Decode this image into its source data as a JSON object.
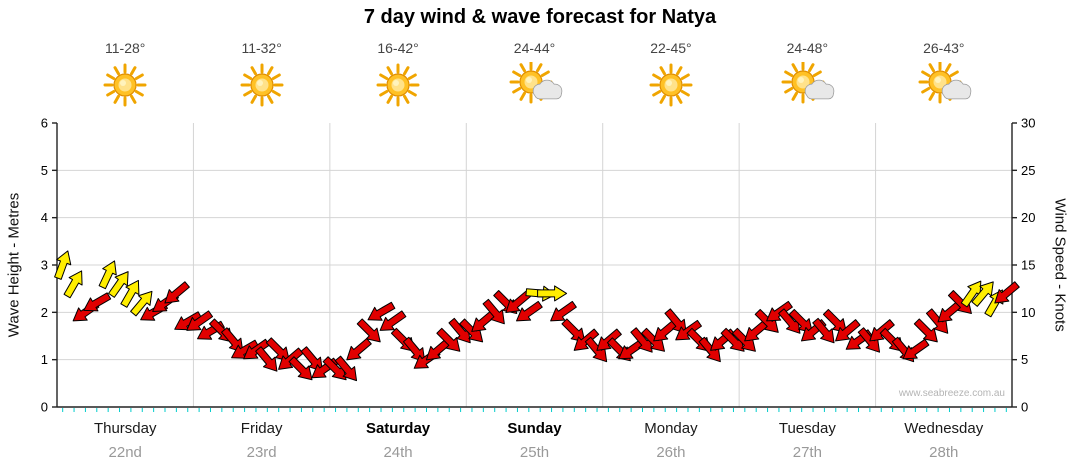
{
  "title": "7 day wind & wave forecast for Natya",
  "watermark": "www.seabreeze.com.au",
  "axes": {
    "left_label": "Wave Height - Metres",
    "right_label": "Wind Speed - Knots",
    "left_ticks": [
      0,
      1,
      2,
      3,
      4,
      5,
      6
    ],
    "right_ticks": [
      0,
      5,
      10,
      15,
      20,
      25,
      30
    ]
  },
  "days": [
    {
      "name": "Thursday",
      "date": "22nd",
      "temp": "11-28°",
      "icon": "sun",
      "bold": false
    },
    {
      "name": "Friday",
      "date": "23rd",
      "temp": "11-32°",
      "icon": "sun",
      "bold": false
    },
    {
      "name": "Saturday",
      "date": "24th",
      "temp": "16-42°",
      "icon": "sun",
      "bold": true
    },
    {
      "name": "Sunday",
      "date": "25th",
      "temp": "24-44°",
      "icon": "sun-cloud",
      "bold": true
    },
    {
      "name": "Monday",
      "date": "26th",
      "temp": "22-45°",
      "icon": "sun",
      "bold": false
    },
    {
      "name": "Tuesday",
      "date": "27th",
      "temp": "24-48°",
      "icon": "sun-cloud",
      "bold": false
    },
    {
      "name": "Wednesday",
      "date": "28th",
      "temp": "26-43°",
      "icon": "sun-cloud",
      "bold": false
    }
  ],
  "chart_data": {
    "type": "wind-arrows",
    "title": "7 day wind & wave forecast for Natya",
    "ylabel_left": "Wave Height - Metres",
    "ylabel_right": "Wind Speed - Knots",
    "ylim_left": [
      0,
      6
    ],
    "ylim_right": [
      0,
      30
    ],
    "grid": true,
    "colors": {
      "red": "#e10000",
      "yellow": "#ffee00",
      "outline": "#000000",
      "grid": "#d4d4d4",
      "axis": "#222222",
      "tick_minor": "#00cccc"
    },
    "arrows_format": [
      "knots",
      "rotation_deg",
      "color y=yellow r=red"
    ],
    "arrows": [
      [
        15,
        -70,
        "y"
      ],
      [
        13,
        -60,
        "y"
      ],
      [
        10,
        145,
        "r"
      ],
      [
        11,
        150,
        "r"
      ],
      [
        14,
        -65,
        "y"
      ],
      [
        13,
        -55,
        "y"
      ],
      [
        12,
        -60,
        "y"
      ],
      [
        11,
        -50,
        "y"
      ],
      [
        10,
        150,
        "r"
      ],
      [
        11,
        145,
        "r"
      ],
      [
        12,
        140,
        "r"
      ],
      [
        9,
        150,
        "r"
      ],
      [
        9,
        145,
        "r"
      ],
      [
        8,
        150,
        "r"
      ],
      [
        8,
        45,
        "r"
      ],
      [
        7,
        50,
        "r"
      ],
      [
        6,
        150,
        "r"
      ],
      [
        6,
        145,
        "r"
      ],
      [
        5,
        50,
        "r"
      ],
      [
        6,
        45,
        "r"
      ],
      [
        5,
        140,
        "r"
      ],
      [
        4,
        45,
        "r"
      ],
      [
        5,
        50,
        "r"
      ],
      [
        4,
        145,
        "r"
      ],
      [
        4,
        45,
        "r"
      ],
      [
        4,
        50,
        "r"
      ],
      [
        6,
        140,
        "r"
      ],
      [
        8,
        45,
        "r"
      ],
      [
        10,
        150,
        "r"
      ],
      [
        9,
        145,
        "r"
      ],
      [
        7,
        45,
        "r"
      ],
      [
        6,
        50,
        "r"
      ],
      [
        5,
        145,
        "r"
      ],
      [
        6,
        140,
        "r"
      ],
      [
        7,
        45,
        "r"
      ],
      [
        8,
        50,
        "r"
      ],
      [
        8,
        45,
        "r"
      ],
      [
        9,
        140,
        "r"
      ],
      [
        10,
        50,
        "r"
      ],
      [
        11,
        45,
        "r"
      ],
      [
        11,
        140,
        "r"
      ],
      [
        10,
        145,
        "r"
      ],
      [
        12,
        5,
        "y"
      ],
      [
        12,
        0,
        "y"
      ],
      [
        10,
        145,
        "r"
      ],
      [
        8,
        45,
        "r"
      ],
      [
        7,
        140,
        "r"
      ],
      [
        6,
        50,
        "r"
      ],
      [
        7,
        140,
        "r"
      ],
      [
        6,
        45,
        "r"
      ],
      [
        6,
        145,
        "r"
      ],
      [
        7,
        50,
        "r"
      ],
      [
        7,
        45,
        "r"
      ],
      [
        8,
        140,
        "r"
      ],
      [
        9,
        50,
        "r"
      ],
      [
        8,
        145,
        "r"
      ],
      [
        7,
        45,
        "r"
      ],
      [
        6,
        50,
        "r"
      ],
      [
        7,
        140,
        "r"
      ],
      [
        7,
        45,
        "r"
      ],
      [
        7,
        45,
        "r"
      ],
      [
        8,
        140,
        "r"
      ],
      [
        9,
        45,
        "r"
      ],
      [
        10,
        145,
        "r"
      ],
      [
        9,
        50,
        "r"
      ],
      [
        9,
        45,
        "r"
      ],
      [
        8,
        140,
        "r"
      ],
      [
        8,
        50,
        "r"
      ],
      [
        9,
        45,
        "r"
      ],
      [
        8,
        140,
        "r"
      ],
      [
        7,
        145,
        "r"
      ],
      [
        7,
        50,
        "r"
      ],
      [
        8,
        140,
        "r"
      ],
      [
        7,
        45,
        "r"
      ],
      [
        6,
        50,
        "r"
      ],
      [
        6,
        145,
        "r"
      ],
      [
        8,
        45,
        "r"
      ],
      [
        9,
        50,
        "r"
      ],
      [
        10,
        140,
        "r"
      ],
      [
        11,
        45,
        "r"
      ],
      [
        12,
        -55,
        "y"
      ],
      [
        12,
        -50,
        "y"
      ],
      [
        11,
        -60,
        "y"
      ],
      [
        12,
        140,
        "r"
      ]
    ]
  }
}
